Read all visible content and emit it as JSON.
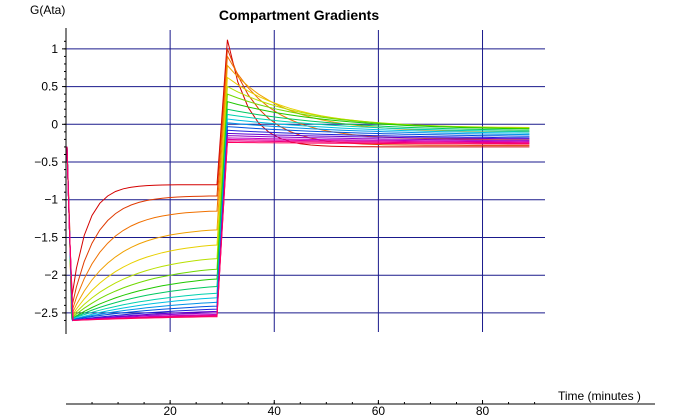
{
  "chart_data": {
    "type": "line",
    "title": "Compartment Gradients",
    "ylabel": "G(Ata)",
    "xlabel": "Time (minutes )",
    "xlim": [
      0,
      92
    ],
    "ylim": [
      -2.7,
      1.25
    ],
    "xticks": [
      20,
      40,
      60,
      80
    ],
    "yticks": [
      1,
      0.5,
      0,
      -0.5,
      -1,
      -1.5,
      -2,
      -2.5
    ],
    "ytick_labels": [
      "1",
      "0.5",
      "0",
      "−0.5",
      "−1",
      "−1.5",
      "−2",
      "−2.5"
    ],
    "grid": true,
    "series": [
      {
        "color": "#d40000",
        "values_at": {
          "t0": -0.3,
          "min": -2.35,
          "t28": -0.8,
          "peak": 1.12,
          "t90": -0.3
        }
      },
      {
        "color": "#e03a00",
        "values_at": {
          "t0": -0.3,
          "min": -2.45,
          "t28": -0.95,
          "peak": 1.0,
          "t90": -0.28
        }
      },
      {
        "color": "#f07000",
        "values_at": {
          "t0": -0.3,
          "min": -2.5,
          "t28": -1.15,
          "peak": 0.9,
          "t90": -0.2
        }
      },
      {
        "color": "#f0a000",
        "values_at": {
          "t0": -0.3,
          "min": -2.53,
          "t28": -1.4,
          "peak": 0.78,
          "t90": -0.1
        }
      },
      {
        "color": "#e8d000",
        "values_at": {
          "t0": -0.3,
          "min": -2.55,
          "t28": -1.6,
          "peak": 0.62,
          "t90": -0.05
        }
      },
      {
        "color": "#b8e000",
        "values_at": {
          "t0": -0.3,
          "min": -2.56,
          "t28": -1.78,
          "peak": 0.5,
          "t90": -0.06
        }
      },
      {
        "color": "#70d800",
        "values_at": {
          "t0": -0.3,
          "min": -2.57,
          "t28": -1.92,
          "peak": 0.4,
          "t90": -0.07
        }
      },
      {
        "color": "#20c800",
        "values_at": {
          "t0": -0.3,
          "min": -2.58,
          "t28": -2.05,
          "peak": 0.3,
          "t90": -0.08
        }
      },
      {
        "color": "#00c860",
        "values_at": {
          "t0": -0.3,
          "min": -2.58,
          "t28": -2.15,
          "peak": 0.2,
          "t90": -0.1
        }
      },
      {
        "color": "#00d0b0",
        "values_at": {
          "t0": -0.3,
          "min": -2.58,
          "t28": -2.24,
          "peak": 0.13,
          "t90": -0.12
        }
      },
      {
        "color": "#00c0e0",
        "values_at": {
          "t0": -0.3,
          "min": -2.59,
          "t28": -2.3,
          "peak": 0.07,
          "t90": -0.14
        }
      },
      {
        "color": "#0090e8",
        "values_at": {
          "t0": -0.3,
          "min": -2.59,
          "t28": -2.36,
          "peak": 0.02,
          "t90": -0.16
        }
      },
      {
        "color": "#0050e0",
        "values_at": {
          "t0": -0.3,
          "min": -2.59,
          "t28": -2.41,
          "peak": -0.03,
          "t90": -0.18
        }
      },
      {
        "color": "#2020d8",
        "values_at": {
          "t0": -0.3,
          "min": -2.6,
          "t28": -2.45,
          "peak": -0.08,
          "t90": -0.2
        }
      },
      {
        "color": "#6000d0",
        "values_at": {
          "t0": -0.3,
          "min": -2.6,
          "t28": -2.48,
          "peak": -0.12,
          "t90": -0.21
        }
      },
      {
        "color": "#9000c8",
        "values_at": {
          "t0": -0.3,
          "min": -2.6,
          "t28": -2.5,
          "peak": -0.15,
          "t90": -0.23
        }
      },
      {
        "color": "#c000c0",
        "values_at": {
          "t0": -0.3,
          "min": -2.6,
          "t28": -2.52,
          "peak": -0.18,
          "t90": -0.24
        }
      },
      {
        "color": "#e000a0",
        "values_at": {
          "t0": -0.3,
          "min": -2.6,
          "t28": -2.53,
          "peak": -0.2,
          "t90": -0.25
        }
      },
      {
        "color": "#f00080",
        "values_at": {
          "t0": -0.3,
          "min": -2.6,
          "t28": -2.54,
          "peak": -0.22,
          "t90": -0.26
        }
      },
      {
        "color": "#ff0060",
        "values_at": {
          "t0": -0.3,
          "min": -2.6,
          "t28": -2.55,
          "peak": -0.24,
          "t90": -0.27
        }
      }
    ]
  }
}
